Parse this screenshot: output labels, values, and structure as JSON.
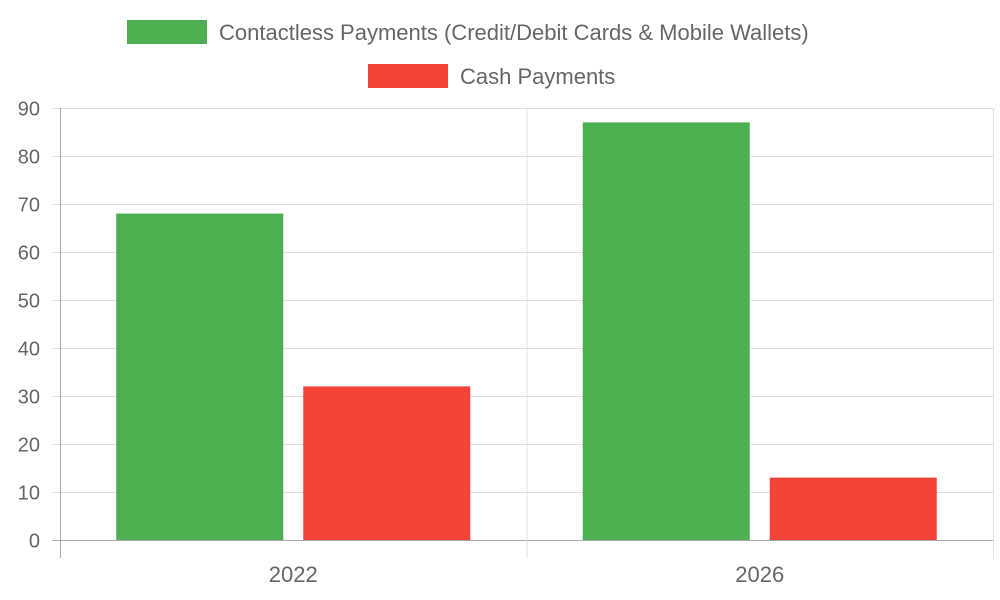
{
  "chart_data": {
    "type": "bar",
    "categories": [
      "2022",
      "2026"
    ],
    "series": [
      {
        "name": "Contactless Payments (Credit/Debit Cards & Mobile Wallets)",
        "values": [
          68,
          87
        ],
        "color": "#4caf50"
      },
      {
        "name": "Cash Payments",
        "values": [
          32,
          13
        ],
        "color": "#f44336"
      }
    ],
    "title": "",
    "xlabel": "",
    "ylabel": "",
    "ylim": [
      0,
      90
    ],
    "yticks": [
      0,
      10,
      20,
      30,
      40,
      50,
      60,
      70,
      80,
      90
    ],
    "grid": true,
    "legend": "top-center"
  }
}
